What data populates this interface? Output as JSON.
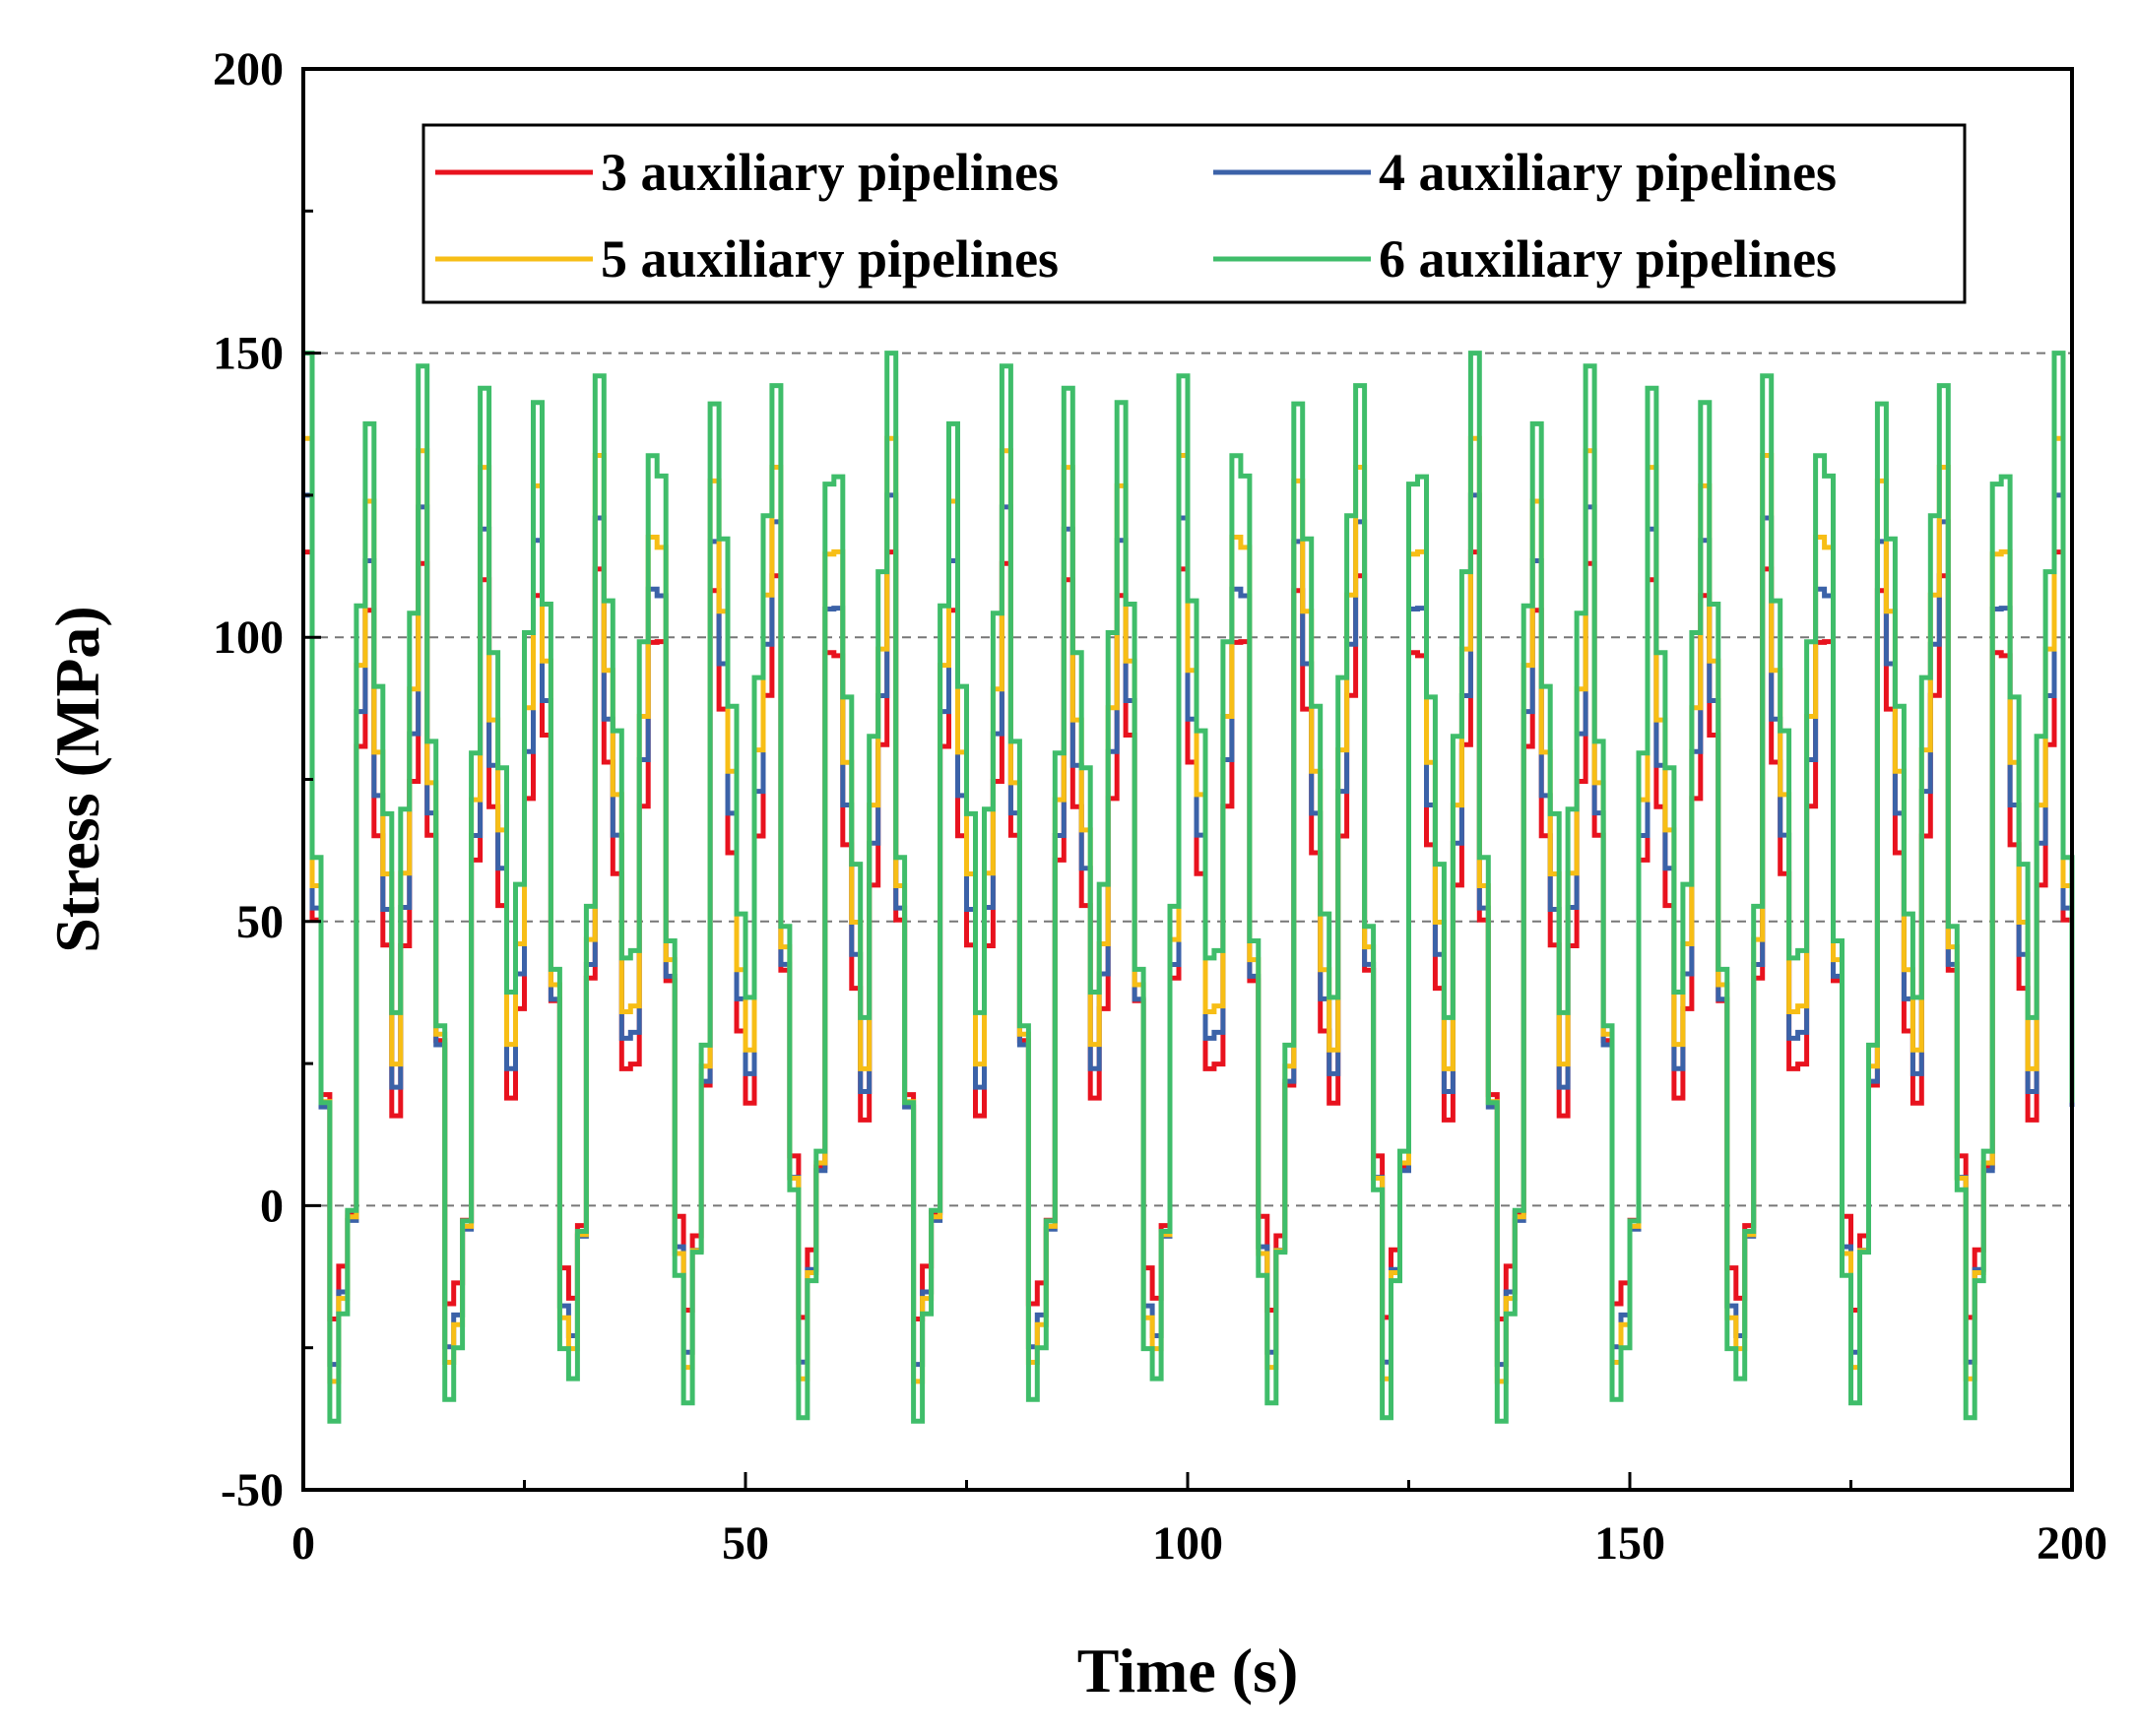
{
  "chart_data": {
    "type": "line",
    "title": "",
    "xlabel": "Time (s)",
    "ylabel": "Stress (MPa)",
    "xlim": [
      0,
      200
    ],
    "ylim": [
      -50,
      200
    ],
    "x_ticks": [
      0,
      50,
      100,
      150,
      200
    ],
    "x_tick_labels": [
      "0",
      "50",
      "100",
      "150",
      "200"
    ],
    "y_ticks": [
      -50,
      0,
      50,
      100,
      150,
      200
    ],
    "y_tick_labels": [
      "-50",
      "0",
      "50",
      "100",
      "150",
      "200"
    ],
    "reference_lines_y": [
      0,
      50,
      100,
      150
    ],
    "legend_position": "top",
    "period_s": 13.2,
    "sample_interval_s": 1.0,
    "series": [
      {
        "name": "3 auxiliary pipelines",
        "color": "#e8121e",
        "min": -20,
        "max": 115,
        "secondary_peak": 112,
        "trough": 15
      },
      {
        "name": "4 auxiliary pipelines",
        "color": "#3b62a8",
        "min": -28,
        "max": 125,
        "secondary_peak": 121,
        "trough": 20
      },
      {
        "name": "5 auxiliary pipelines",
        "color": "#f7be16",
        "min": -31,
        "max": 135,
        "secondary_peak": 132,
        "trough": 24
      },
      {
        "name": "6 auxiliary pipelines",
        "color": "#3fbd6a",
        "min": -38,
        "max": 150,
        "secondary_peak": 146,
        "trough": 33
      }
    ]
  }
}
